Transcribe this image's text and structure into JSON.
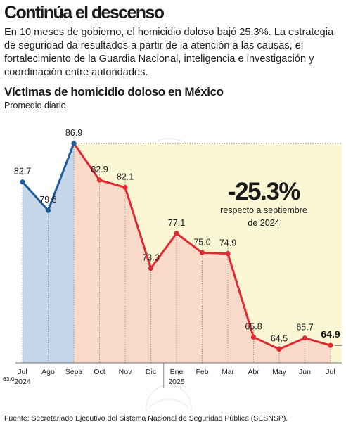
{
  "header": {
    "headline": "Continúa el descenso",
    "lead": "En 10 meses de gobierno, el homicidio doloso bajó 25.3%. La estrategia de seguridad da resultados a partir de la atención a las causas, el fortalecimiento de la Guardia Nacional, inteligencia e investigación y coordinación entre autoridades."
  },
  "chart_data": {
    "type": "line",
    "title": "Víctimas de homicidio doloso en México",
    "subtitle": "Promedio diario",
    "categories": [
      "Jul",
      "Ago",
      "Sepa",
      "Oct",
      "Nov",
      "Dic",
      "Ene",
      "Feb",
      "Mar",
      "Abr",
      "May",
      "Jun",
      "Jul"
    ],
    "year_labels": [
      {
        "category": "Jul",
        "year": "2024"
      },
      {
        "category": "Ene",
        "year": "2025"
      }
    ],
    "series": [
      {
        "values": [
          82.7,
          79.6,
          86.9,
          82.9,
          82.1,
          73.3,
          77.1,
          75.0,
          74.9,
          65.8,
          64.5,
          65.7,
          64.9
        ],
        "value_labels": [
          "82.7",
          "79.6",
          "86.9",
          "82.9",
          "82.1",
          "73.3",
          "77.1",
          "75.0",
          "74.9",
          "65.8",
          "64.5",
          "65.7",
          "64.9"
        ]
      }
    ],
    "segments": [
      {
        "from": 0,
        "to": 2,
        "line_color": "#1f5c99",
        "fill_color": "#c5d6ea"
      },
      {
        "from": 2,
        "to": 12,
        "line_color": "#e02a33",
        "fill_color": "#f9d9c8"
      }
    ],
    "baseline_label": "63.0",
    "ylim": [
      63.0,
      88.5
    ],
    "highlight_last_label": true,
    "annotation": {
      "value": "-25.3%",
      "text_line1": "respecto a septiembre",
      "text_line2": "de 2024"
    },
    "reference_band_color": "#fbf6d3",
    "grid": false
  },
  "footer": {
    "source": "Fuente: Secretariado Ejecutivo del Sistema Nacional de Seguridad Pública (SESNSP)."
  }
}
